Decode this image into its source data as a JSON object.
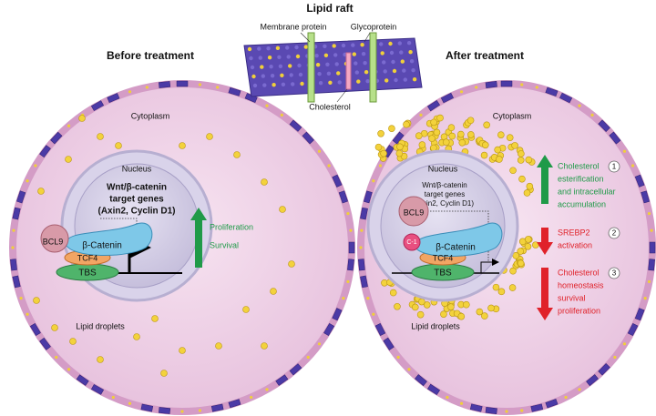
{
  "lipid_raft": {
    "title": "Lipid raft",
    "membrane_protein": "Membrane protein",
    "glycoprotein": "Glycoprotein",
    "cholesterol": "Cholesterol"
  },
  "panels": [
    {
      "title": "Before treatment",
      "cytoplasm": "Cytoplasm",
      "nucleus": "Nucleus",
      "target_genes": [
        "Wnt/β-catenin",
        "target genes",
        "(Axin2, Cyclin D1)"
      ],
      "bcl9": "BCL9",
      "beta_catenin": "β-Catenin",
      "tcf4": "TCF4",
      "tbs": "TBS",
      "lipid_droplets": "Lipid droplets",
      "effects": [
        {
          "lines": [
            "Proliferation",
            "Survival"
          ]
        }
      ]
    },
    {
      "title": "After treatment",
      "cytoplasm": "Cytoplasm",
      "nucleus": "Nucleus",
      "target_genes": [
        "Wnt/β-catenin",
        "target genes",
        "(Axin2, Cyclin D1)"
      ],
      "bcl9": "BCL9",
      "inhibitor": "C-1",
      "beta_catenin": "β-Catenin",
      "tcf4": "TCF4",
      "tbs": "TBS",
      "lipid_droplets": "Lipid droplets",
      "effects": [
        {
          "number": "1",
          "lines": [
            "Cholesterol",
            "esterification",
            "and intracellular",
            "accumulation"
          ]
        },
        {
          "number": "2",
          "lines": [
            "SREBP2",
            "activation"
          ]
        },
        {
          "number": "3",
          "lines": [
            "Cholesterol",
            "homeostasis",
            "survival",
            "proliferation"
          ]
        }
      ]
    }
  ]
}
